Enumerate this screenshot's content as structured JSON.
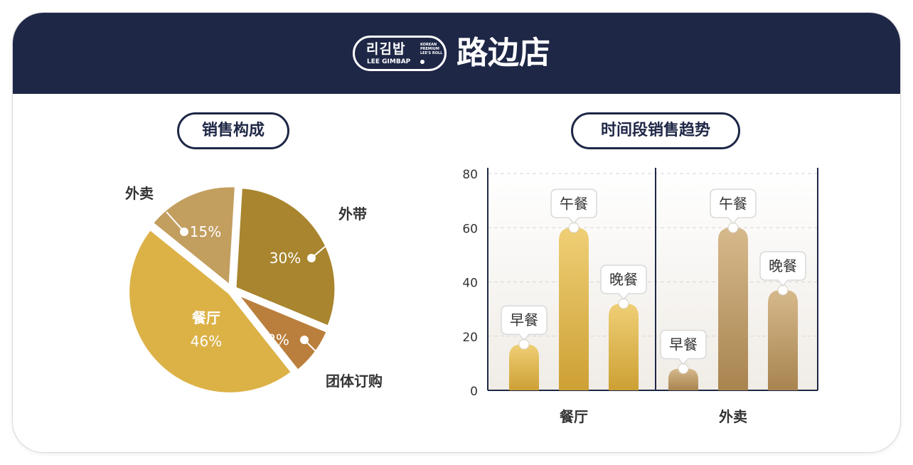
{
  "header": {
    "logo_korean": "리김밥",
    "logo_english": "LEE GIMBAP",
    "logo_tagline": [
      "KOREAN",
      "PREMIUM",
      "LEE'S ROLL"
    ],
    "title": "路边店"
  },
  "chart_data": [
    {
      "type": "pie",
      "title": "销售构成",
      "slices": [
        {
          "label": "外带",
          "value": 30,
          "value_label": "30%",
          "color": "#a8852e"
        },
        {
          "label": "团体订购",
          "value": 8,
          "value_label": "8%",
          "color": "#bb7f3d"
        },
        {
          "label": "餐厅",
          "value": 46,
          "value_label": "46%",
          "color": "#dcb247"
        },
        {
          "label": "外卖",
          "value": 15,
          "value_label": "15%",
          "color": "#c29e5f"
        }
      ]
    },
    {
      "type": "bar",
      "title": "时间段销售趋势",
      "groups": [
        {
          "name": "餐厅",
          "bars": [
            {
              "label": "早餐",
              "value": 17
            },
            {
              "label": "午餐",
              "value": 60
            },
            {
              "label": "晚餐",
              "value": 32
            }
          ]
        },
        {
          "name": "外卖",
          "bars": [
            {
              "label": "早餐",
              "value": 8
            },
            {
              "label": "午餐",
              "value": 60
            },
            {
              "label": "晚餐",
              "value": 37
            }
          ]
        }
      ],
      "y_ticks": [
        0,
        20,
        40,
        60,
        80
      ],
      "ylim": [
        0,
        80
      ],
      "grid": true,
      "colors": {
        "group1": "#dcb247",
        "group2": "#b89260"
      }
    }
  ]
}
